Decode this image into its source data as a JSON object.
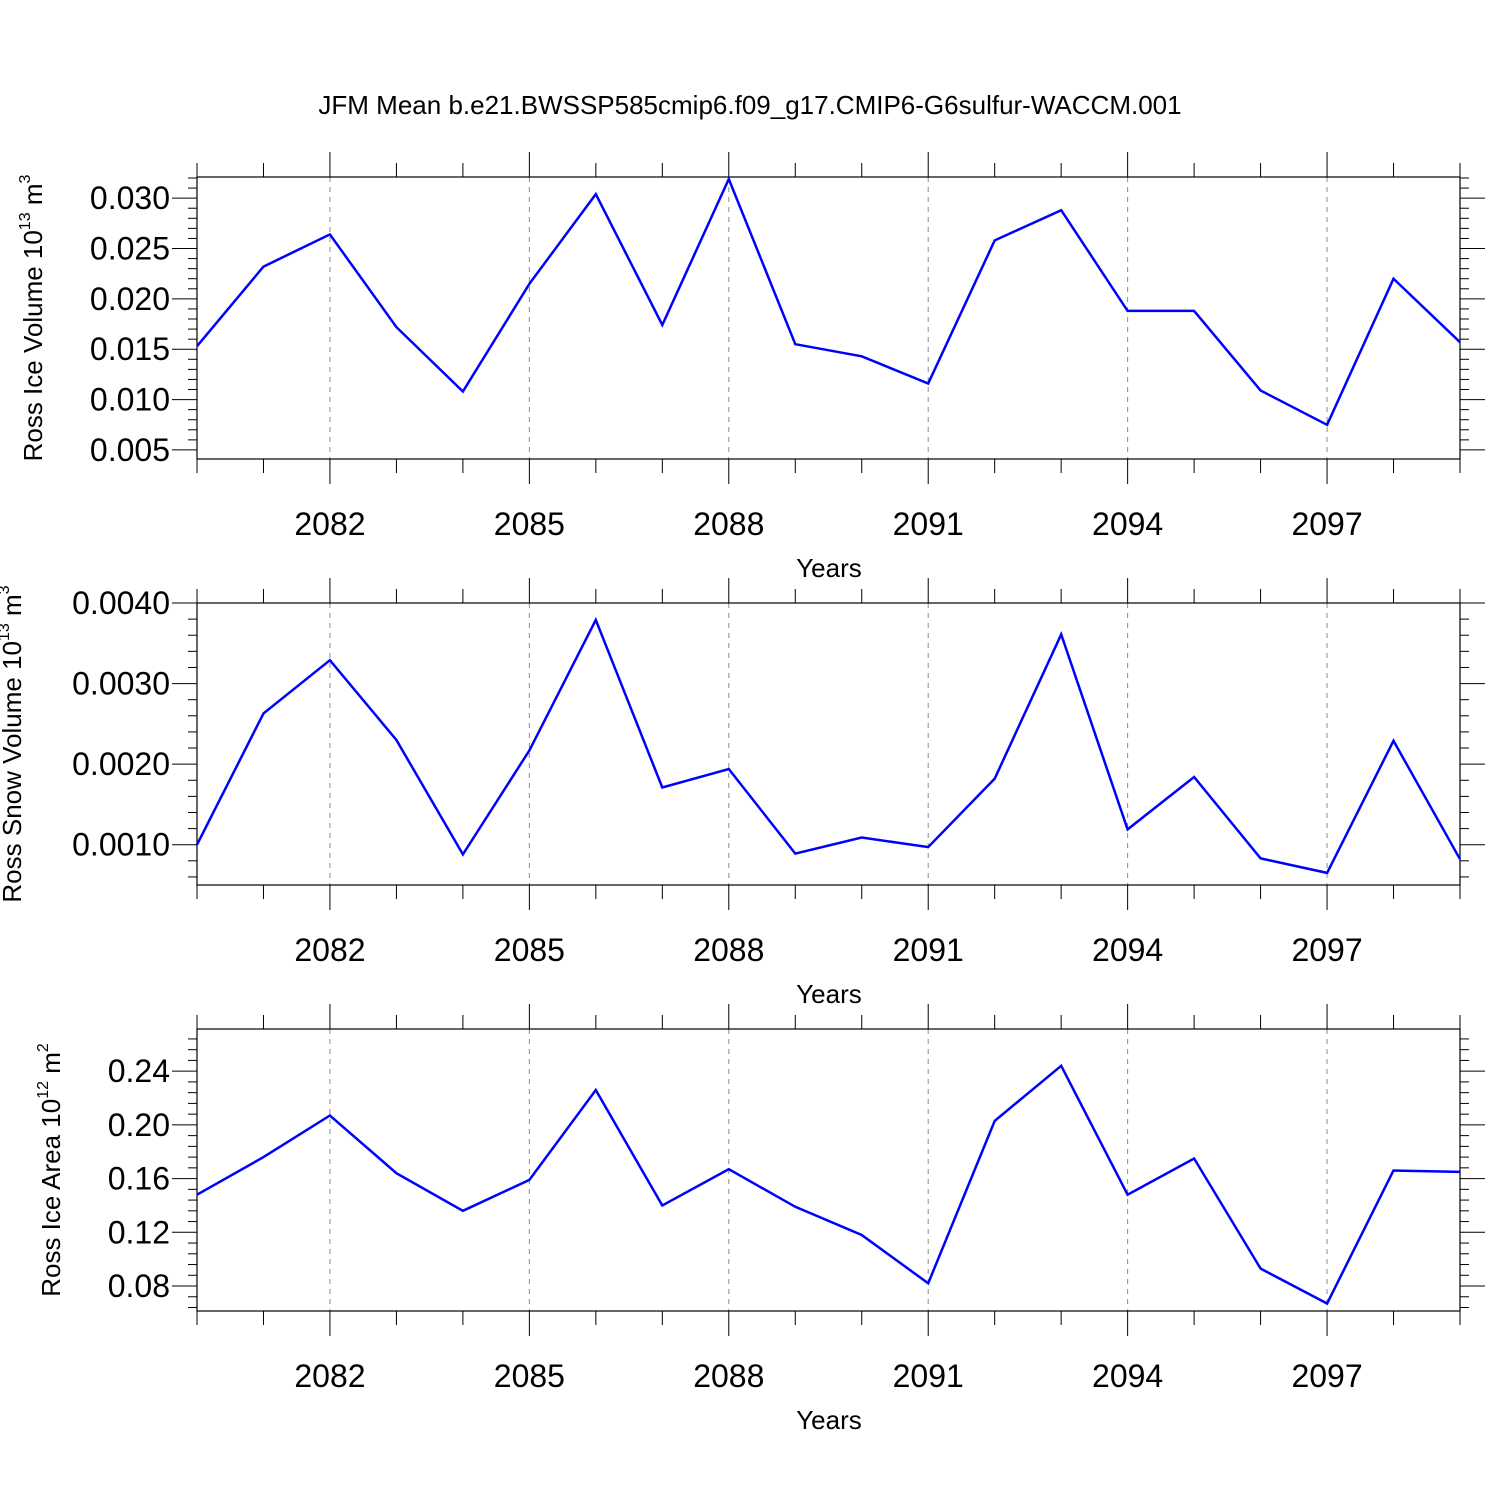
{
  "figure": {
    "title": "JFM Mean b.e21.BWSSP585cmip6.f09_g17.CMIP6-G6sulfur-WACCM.001",
    "line_color": "#0000ff"
  },
  "chart_data": [
    {
      "type": "line",
      "xlabel": "Years",
      "ylabel_text": "Ross Ice Volume 10",
      "ylabel_exp": "13",
      "ylabel_unit": " m",
      "ylabel_unit_exp": "3",
      "x": [
        2080,
        2081,
        2082,
        2083,
        2084,
        2085,
        2086,
        2087,
        2088,
        2089,
        2090,
        2091,
        2092,
        2093,
        2094,
        2095,
        2096,
        2097,
        2098,
        2099
      ],
      "values": [
        0.0153,
        0.0232,
        0.0264,
        0.0172,
        0.0108,
        0.0215,
        0.0304,
        0.0174,
        0.0319,
        0.0155,
        0.0143,
        0.0116,
        0.0258,
        0.0288,
        0.0188,
        0.0188,
        0.0109,
        0.0075,
        0.022,
        0.0157
      ],
      "xlim": [
        2080,
        2099
      ],
      "ylim": [
        0.0041,
        0.0321
      ],
      "xticks": [
        2082,
        2085,
        2088,
        2091,
        2094,
        2097
      ],
      "xtick_labels": [
        "2082",
        "2085",
        "2088",
        "2091",
        "2094",
        "2097"
      ],
      "yticks": [
        0.005,
        0.01,
        0.015,
        0.02,
        0.025,
        0.03
      ],
      "ytick_labels": [
        "0.005",
        "0.010",
        "0.015",
        "0.020",
        "0.025",
        "0.030"
      ],
      "y_minor_step": 0.001,
      "grid": "vertical dashed at major x ticks"
    },
    {
      "type": "line",
      "xlabel": "Years",
      "ylabel_text": "Ross Snow Volume 10",
      "ylabel_exp": "13",
      "ylabel_unit": " m",
      "ylabel_unit_exp": "3",
      "x": [
        2080,
        2081,
        2082,
        2083,
        2084,
        2085,
        2086,
        2087,
        2088,
        2089,
        2090,
        2091,
        2092,
        2093,
        2094,
        2095,
        2096,
        2097,
        2098,
        2099
      ],
      "values": [
        0.001,
        0.00263,
        0.00329,
        0.0023,
        0.00088,
        0.00217,
        0.00379,
        0.00171,
        0.00194,
        0.00089,
        0.00109,
        0.00097,
        0.00182,
        0.00361,
        0.00119,
        0.00184,
        0.00083,
        0.00065,
        0.00229,
        0.00082
      ],
      "xlim": [
        2080,
        2099
      ],
      "ylim": [
        0.0005,
        0.004
      ],
      "xticks": [
        2082,
        2085,
        2088,
        2091,
        2094,
        2097
      ],
      "xtick_labels": [
        "2082",
        "2085",
        "2088",
        "2091",
        "2094",
        "2097"
      ],
      "yticks": [
        0.001,
        0.002,
        0.003,
        0.004
      ],
      "ytick_labels": [
        "0.0010",
        "0.0020",
        "0.0030",
        "0.0040"
      ],
      "y_minor_step": 0.0002,
      "grid": "vertical dashed at major x ticks"
    },
    {
      "type": "line",
      "xlabel": "Years",
      "ylabel_text": "Ross Ice Area 10",
      "ylabel_exp": "12",
      "ylabel_unit": " m",
      "ylabel_unit_exp": "2",
      "x": [
        2080,
        2081,
        2082,
        2083,
        2084,
        2085,
        2086,
        2087,
        2088,
        2089,
        2090,
        2091,
        2092,
        2093,
        2094,
        2095,
        2096,
        2097,
        2098,
        2099
      ],
      "values": [
        0.148,
        0.176,
        0.207,
        0.164,
        0.136,
        0.159,
        0.226,
        0.14,
        0.167,
        0.139,
        0.118,
        0.082,
        0.203,
        0.244,
        0.148,
        0.175,
        0.093,
        0.067,
        0.166,
        0.165
      ],
      "xlim": [
        2080,
        2099
      ],
      "ylim": [
        0.0614,
        0.2714
      ],
      "xticks": [
        2082,
        2085,
        2088,
        2091,
        2094,
        2097
      ],
      "xtick_labels": [
        "2082",
        "2085",
        "2088",
        "2091",
        "2094",
        "2097"
      ],
      "yticks": [
        0.08,
        0.12,
        0.16,
        0.2,
        0.24
      ],
      "ytick_labels": [
        "0.08",
        "0.12",
        "0.16",
        "0.20",
        "0.24"
      ],
      "y_minor_step": 0.008,
      "grid": "vertical dashed at major x ticks"
    }
  ]
}
